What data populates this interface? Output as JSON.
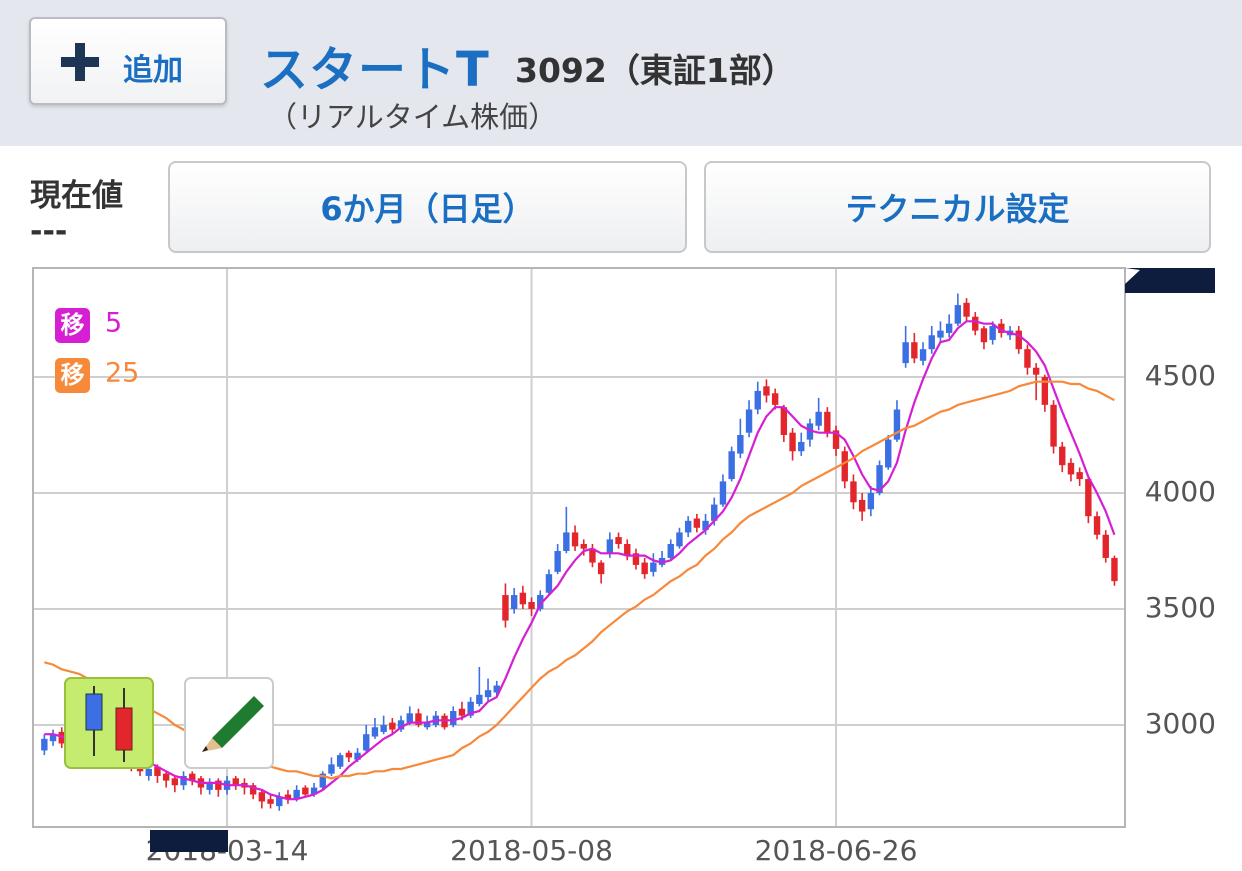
{
  "header": {
    "add_button": "追加",
    "name": "スタートT",
    "code": "3092（東証1部）",
    "subtitle": "（リアルタイム株価）"
  },
  "price": {
    "label": "現在値",
    "value": "---"
  },
  "buttons": {
    "period": "6か月（日足）",
    "technical": "テクニカル設定"
  },
  "chart_data": {
    "type": "candlestick",
    "categories": [
      null,
      null,
      null,
      null,
      null,
      null,
      null,
      null,
      null,
      null,
      null,
      null,
      null,
      null,
      null,
      null,
      null,
      null,
      null,
      null,
      null,
      "2018-03-14",
      null,
      null,
      null,
      null,
      null,
      null,
      null,
      null,
      null,
      null,
      null,
      null,
      null,
      null,
      null,
      null,
      null,
      null,
      null,
      null,
      null,
      null,
      null,
      null,
      null,
      null,
      null,
      null,
      null,
      null,
      null,
      null,
      null,
      null,
      "2018-05-08",
      null,
      null,
      null,
      null,
      null,
      null,
      null,
      null,
      null,
      null,
      null,
      null,
      null,
      null,
      null,
      null,
      null,
      null,
      null,
      null,
      null,
      null,
      null,
      null,
      null,
      null,
      null,
      null,
      null,
      null,
      null,
      null,
      null,
      null,
      "2018-06-26",
      null,
      null,
      null,
      null,
      null,
      null,
      null,
      null,
      null,
      null,
      null,
      null,
      null,
      null,
      null,
      null,
      null,
      null,
      null,
      null,
      null,
      null,
      null,
      null,
      null,
      null,
      null,
      null,
      null,
      null,
      null,
      null
    ],
    "open": [
      2890,
      2930,
      2970,
      2930,
      2910,
      2870,
      2910,
      2880,
      2840,
      2890,
      2860,
      2840,
      2780,
      2820,
      2790,
      2770,
      2740,
      2790,
      2770,
      2720,
      2760,
      2720,
      2770,
      2750,
      2740,
      2710,
      2680,
      2650,
      2700,
      2680,
      2730,
      2700,
      2730,
      2790,
      2820,
      2880,
      2850,
      2890,
      2950,
      2970,
      3010,
      2980,
      3010,
      3050,
      2990,
      3000,
      3040,
      3000,
      3070,
      3040,
      3090,
      3120,
      3140,
      3560,
      3500,
      3570,
      3530,
      3500,
      3570,
      3660,
      3750,
      3830,
      3780,
      3760,
      3700,
      3740,
      3810,
      3780,
      3740,
      3700,
      3660,
      3690,
      3720,
      3770,
      3830,
      3890,
      3840,
      3880,
      3950,
      4060,
      4170,
      4260,
      4360,
      4460,
      4430,
      4370,
      4260,
      4180,
      4230,
      4290,
      4350,
      4270,
      4180,
      4050,
      3970,
      3930,
      4000,
      4110,
      4230,
      4560,
      4650,
      4570,
      4620,
      4670,
      4690,
      4730,
      4820,
      4760,
      4710,
      4660,
      4730,
      4680,
      4700,
      4620,
      4540,
      4500,
      4380,
      4200,
      4130,
      4090,
      4060,
      3900,
      3820,
      3720
    ],
    "high": [
      2960,
      2980,
      2990,
      2950,
      2920,
      2920,
      2930,
      2890,
      2900,
      2900,
      2870,
      2850,
      2830,
      2830,
      2800,
      2780,
      2800,
      2800,
      2780,
      2770,
      2770,
      2780,
      2780,
      2770,
      2750,
      2720,
      2700,
      2710,
      2720,
      2740,
      2740,
      2750,
      2800,
      2860,
      2880,
      2890,
      2900,
      3000,
      3030,
      3040,
      3030,
      3040,
      3080,
      3070,
      3040,
      3060,
      3050,
      3080,
      3100,
      3120,
      3250,
      3200,
      3190,
      3610,
      3590,
      3600,
      3550,
      3580,
      3670,
      3780,
      3940,
      3860,
      3800,
      3780,
      3710,
      3830,
      3830,
      3800,
      3760,
      3720,
      3740,
      3750,
      3800,
      3850,
      3900,
      3910,
      3910,
      3980,
      4080,
      4200,
      4320,
      4400,
      4480,
      4490,
      4450,
      4380,
      4280,
      4260,
      4320,
      4410,
      4370,
      4290,
      4200,
      4080,
      4000,
      4030,
      4140,
      4250,
      4400,
      4720,
      4690,
      4650,
      4720,
      4740,
      4770,
      4860,
      4840,
      4780,
      4720,
      4740,
      4750,
      4720,
      4720,
      4640,
      4560,
      4510,
      4400,
      4220,
      4150,
      4110,
      4070,
      3920,
      3840,
      3730
    ],
    "low": [
      2870,
      2910,
      2900,
      2880,
      2860,
      2850,
      2850,
      2830,
      2820,
      2840,
      2800,
      2780,
      2760,
      2750,
      2730,
      2710,
      2720,
      2740,
      2700,
      2700,
      2690,
      2700,
      2720,
      2700,
      2680,
      2640,
      2640,
      2630,
      2660,
      2670,
      2690,
      2690,
      2720,
      2780,
      2810,
      2840,
      2840,
      2880,
      2940,
      2960,
      2960,
      2970,
      3000,
      2990,
      2980,
      2990,
      2980,
      2990,
      3020,
      3030,
      3080,
      3100,
      3120,
      3420,
      3480,
      3500,
      3470,
      3490,
      3560,
      3650,
      3740,
      3750,
      3730,
      3680,
      3610,
      3720,
      3760,
      3710,
      3670,
      3630,
      3640,
      3680,
      3710,
      3760,
      3810,
      3830,
      3820,
      3860,
      3940,
      4050,
      4150,
      4240,
      4340,
      4390,
      4360,
      4220,
      4140,
      4160,
      4200,
      4270,
      4240,
      4160,
      4020,
      3930,
      3880,
      3900,
      3990,
      4100,
      4220,
      4540,
      4560,
      4550,
      4600,
      4650,
      4670,
      4720,
      4740,
      4680,
      4620,
      4640,
      4670,
      4660,
      4600,
      4510,
      4400,
      4350,
      4170,
      4090,
      4050,
      4030,
      3870,
      3800,
      3700,
      3600
    ],
    "close": [
      2940,
      2960,
      2920,
      2900,
      2880,
      2900,
      2870,
      2850,
      2880,
      2860,
      2830,
      2800,
      2810,
      2780,
      2760,
      2740,
      2780,
      2760,
      2730,
      2750,
      2720,
      2760,
      2740,
      2730,
      2700,
      2670,
      2660,
      2690,
      2680,
      2720,
      2700,
      2730,
      2790,
      2830,
      2870,
      2860,
      2880,
      2960,
      2990,
      3000,
      2980,
      3020,
      3050,
      3000,
      3010,
      3040,
      2990,
      3060,
      3040,
      3100,
      3130,
      3150,
      3170,
      3450,
      3560,
      3520,
      3500,
      3560,
      3650,
      3750,
      3830,
      3770,
      3760,
      3700,
      3650,
      3800,
      3780,
      3730,
      3690,
      3650,
      3700,
      3720,
      3780,
      3830,
      3880,
      3850,
      3880,
      3950,
      4050,
      4180,
      4250,
      4360,
      4440,
      4420,
      4380,
      4250,
      4180,
      4220,
      4300,
      4350,
      4260,
      4190,
      4050,
      3960,
      3920,
      4000,
      4120,
      4230,
      4360,
      4650,
      4580,
      4620,
      4680,
      4700,
      4730,
      4810,
      4760,
      4700,
      4650,
      4720,
      4690,
      4700,
      4620,
      4540,
      4510,
      4380,
      4200,
      4120,
      4080,
      4060,
      3900,
      3820,
      3720,
      3620
    ],
    "up_color": "#3b6fe3",
    "down_color": "#e3262c",
    "legend_marker": "移",
    "series": [
      {
        "name": "5",
        "color": "#d61fd2",
        "values": [
          2960,
          2960,
          2950,
          2940,
          2920,
          2910,
          2890,
          2880,
          2880,
          2870,
          2860,
          2840,
          2840,
          2820,
          2800,
          2780,
          2770,
          2760,
          2750,
          2750,
          2750,
          2740,
          2740,
          2740,
          2730,
          2720,
          2700,
          2690,
          2680,
          2680,
          2690,
          2700,
          2720,
          2750,
          2780,
          2820,
          2850,
          2880,
          2910,
          2940,
          2960,
          2990,
          3010,
          3010,
          3010,
          3020,
          3020,
          3020,
          3030,
          3050,
          3060,
          3100,
          3120,
          3200,
          3290,
          3370,
          3440,
          3520,
          3560,
          3600,
          3660,
          3710,
          3750,
          3760,
          3740,
          3740,
          3740,
          3730,
          3730,
          3730,
          3710,
          3700,
          3710,
          3740,
          3780,
          3810,
          3840,
          3880,
          3920,
          3980,
          4060,
          4160,
          4260,
          4330,
          4370,
          4370,
          4330,
          4290,
          4270,
          4260,
          4260,
          4260,
          4230,
          4160,
          4080,
          4020,
          4010,
          4050,
          4130,
          4270,
          4390,
          4490,
          4580,
          4650,
          4660,
          4710,
          4740,
          4740,
          4730,
          4730,
          4700,
          4690,
          4680,
          4650,
          4610,
          4550,
          4450,
          4350,
          4260,
          4170,
          4070,
          4000,
          3920,
          3820
        ]
      },
      {
        "name": "25",
        "color": "#f7893a",
        "values": [
          3270,
          3260,
          3240,
          3230,
          3220,
          3200,
          3190,
          3180,
          3160,
          3140,
          3110,
          3090,
          3070,
          3050,
          3030,
          3000,
          2980,
          2950,
          2930,
          2910,
          2900,
          2880,
          2860,
          2850,
          2830,
          2820,
          2820,
          2810,
          2800,
          2800,
          2790,
          2780,
          2780,
          2770,
          2780,
          2780,
          2790,
          2790,
          2800,
          2800,
          2810,
          2810,
          2820,
          2830,
          2840,
          2850,
          2860,
          2870,
          2900,
          2920,
          2950,
          2970,
          3000,
          3040,
          3080,
          3120,
          3160,
          3200,
          3230,
          3250,
          3280,
          3300,
          3330,
          3360,
          3400,
          3430,
          3460,
          3490,
          3510,
          3540,
          3560,
          3590,
          3620,
          3640,
          3670,
          3690,
          3730,
          3760,
          3800,
          3830,
          3870,
          3900,
          3920,
          3940,
          3960,
          3980,
          4000,
          4030,
          4050,
          4070,
          4090,
          4110,
          4130,
          4150,
          4180,
          4200,
          4220,
          4240,
          4260,
          4280,
          4290,
          4310,
          4330,
          4350,
          4360,
          4380,
          4390,
          4400,
          4410,
          4420,
          4430,
          4440,
          4460,
          4470,
          4480,
          4480,
          4480,
          4480,
          4470,
          4470,
          4450,
          4440,
          4420,
          4400
        ]
      }
    ],
    "ylim": [
      2560,
      4970
    ],
    "yticks": [
      3000,
      3500,
      4000,
      4500
    ],
    "grid": true
  }
}
